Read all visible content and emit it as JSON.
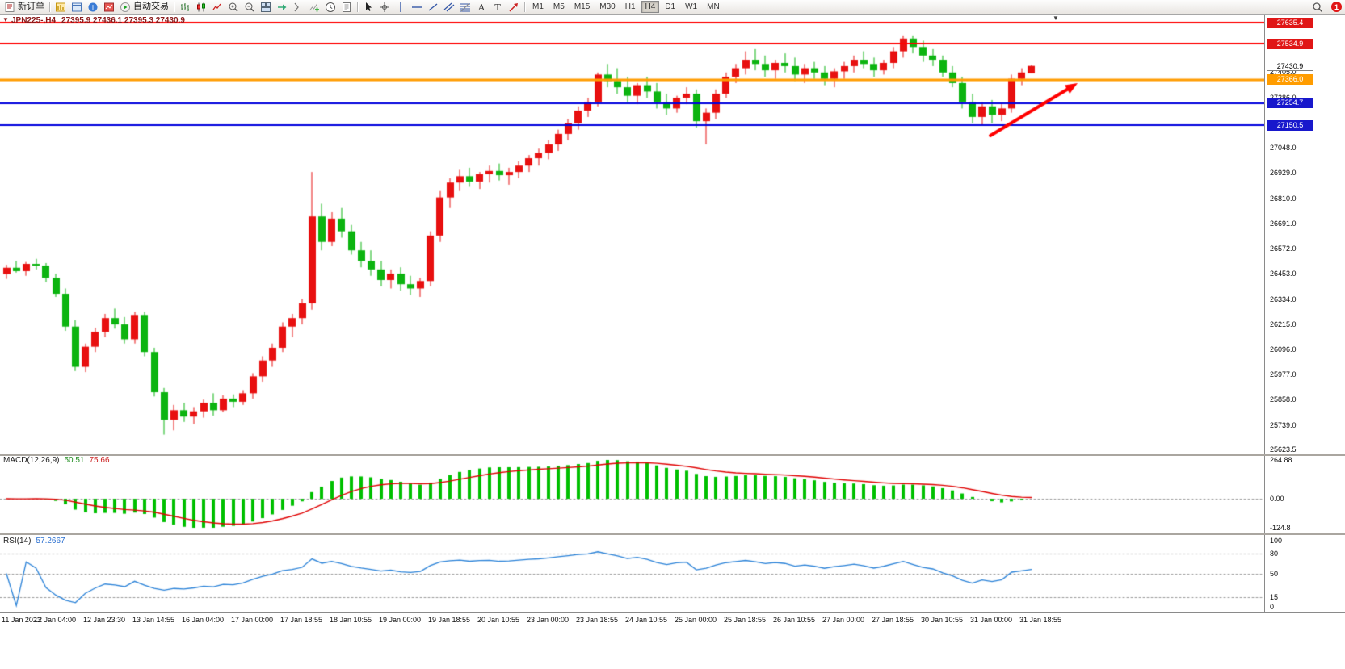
{
  "toolbar": {
    "groups": [
      {
        "items": [
          {
            "name": "new-order-button",
            "icon": "new-order-icon",
            "label": "新订单"
          }
        ]
      },
      {
        "items": [
          {
            "name": "charts-button",
            "icon": "charts-bar-icon"
          },
          {
            "name": "data-window-button",
            "icon": "window-icon"
          },
          {
            "name": "help-button",
            "icon": "info-icon"
          },
          {
            "name": "market-watch-button",
            "icon": "market-watch-icon"
          },
          {
            "name": "auto-trading-button",
            "icon": "autotrade-icon",
            "label": "自动交易"
          }
        ]
      },
      {
        "items": [
          {
            "name": "bar-chart-button",
            "icon": "bar-chart-icon"
          },
          {
            "name": "candlestick-button",
            "icon": "candlestick-icon"
          },
          {
            "name": "line-chart-button",
            "icon": "line-chart-icon"
          },
          {
            "name": "zoom-in-button",
            "icon": "zoom-in-icon"
          },
          {
            "name": "zoom-out-button",
            "icon": "zoom-out-icon"
          },
          {
            "name": "tile-windows-button",
            "icon": "tile-windows-icon"
          },
          {
            "name": "auto-scroll-button",
            "icon": "auto-scroll-icon"
          },
          {
            "name": "chart-shift-button",
            "icon": "chart-shift-icon"
          },
          {
            "name": "indicators-button",
            "icon": "indicators-icon"
          },
          {
            "name": "periods-button",
            "icon": "period-icon"
          },
          {
            "name": "templates-button",
            "icon": "template-icon"
          }
        ]
      },
      {
        "items": [
          {
            "name": "cursor-button",
            "icon": "cursor-icon"
          },
          {
            "name": "crosshair-button",
            "icon": "crosshair-icon"
          },
          {
            "name": "vertical-line-button",
            "icon": "vertical-line-icon"
          },
          {
            "name": "horizontal-line-button",
            "icon": "horizontal-line-icon"
          },
          {
            "name": "trendline-button",
            "icon": "trendline-icon"
          },
          {
            "name": "channel-button",
            "icon": "channel-icon"
          },
          {
            "name": "fibonacci-button",
            "icon": "fibonacci-icon"
          },
          {
            "name": "text-button",
            "icon": "text-icon"
          },
          {
            "name": "text-label-button",
            "icon": "text-label-icon"
          },
          {
            "name": "arrows-button",
            "icon": "arrows-icon"
          }
        ]
      }
    ],
    "timeframes": [
      "M1",
      "M5",
      "M15",
      "M30",
      "H1",
      "H4",
      "D1",
      "W1",
      "MN"
    ],
    "active_timeframe": "H4",
    "notification_count": "1"
  },
  "chart": {
    "header": {
      "symbol": "JPN225-,H4",
      "ohlc": "27395.9 27436.1 27395.3 27430.9"
    }
  },
  "indicators": {
    "macd": {
      "title": "MACD(12,26,9)",
      "value_main": "50.51",
      "value_signal": "75.66",
      "scale": [
        "264.88",
        "0.00",
        "-124.8"
      ]
    },
    "rsi": {
      "title": "RSI(14)",
      "value": "57.2667",
      "scale": [
        "100",
        "80",
        "50",
        "15",
        "0"
      ],
      "levels": [
        80,
        50,
        15
      ]
    }
  },
  "price_scale": {
    "ticks": [
      "27405.0",
      "27286.0",
      "27048.0",
      "26929.0",
      "26810.0",
      "26691.0",
      "26572.0",
      "26453.0",
      "26334.0",
      "26215.0",
      "26096.0",
      "25977.0",
      "25858.0",
      "25739.0",
      "25623.5"
    ],
    "badges": [
      {
        "text": "27635.4",
        "price": 27635.4,
        "bg": "#e01616",
        "fg": "#ffffff"
      },
      {
        "text": "27534.9",
        "price": 27534.9,
        "bg": "#e01616",
        "fg": "#ffffff"
      },
      {
        "text": "27430.9",
        "price": 27430.9,
        "bg": "#ffffff",
        "fg": "#000000",
        "border": "#808080"
      },
      {
        "text": "27366.0",
        "price": 27366.0,
        "bg": "#ff9c00",
        "fg": "#ffffff"
      },
      {
        "text": "27254.7",
        "price": 27254.7,
        "bg": "#1818cc",
        "fg": "#ffffff"
      },
      {
        "text": "27150.5",
        "price": 27150.5,
        "bg": "#1818cc",
        "fg": "#ffffff"
      }
    ]
  },
  "time_axis": {
    "labels": [
      "11 Jan 2023",
      "12 Jan 04:00",
      "12 Jan 23:30",
      "13 Jan 14:55",
      "16 Jan 04:00",
      "17 Jan 00:00",
      "17 Jan 18:55",
      "18 Jan 10:55",
      "19 Jan 00:00",
      "19 Jan 18:55",
      "20 Jan 10:55",
      "23 Jan 00:00",
      "23 Jan 18:55",
      "24 Jan 10:55",
      "25 Jan 00:00",
      "25 Jan 18:55",
      "26 Jan 10:55",
      "27 Jan 00:00",
      "27 Jan 18:55",
      "30 Jan 10:55",
      "31 Jan 00:00",
      "31 Jan 18:55"
    ]
  },
  "chart_data": {
    "type": "candlestick",
    "title": "JPN225- H4",
    "y_range": [
      25623.5,
      27635.4
    ],
    "bull_color": "#e81010",
    "bear_color": "#0cb410",
    "current_price": 27430.9,
    "levels": [
      {
        "price": 27635.4,
        "color": "#ff0000",
        "width": 2
      },
      {
        "price": 27534.9,
        "color": "#ff0000",
        "width": 2
      },
      {
        "price": 27366.0,
        "color": "#ff9c00",
        "width": 3
      },
      {
        "price": 27254.7,
        "color": "#0000dd",
        "width": 2
      },
      {
        "price": 27150.5,
        "color": "#0000dd",
        "width": 2
      }
    ],
    "annotation_arrow": {
      "from": [
        1226,
        150
      ],
      "to": [
        1334,
        85
      ],
      "color": "#ff0000"
    },
    "macd": {
      "fast": 12,
      "slow": 26,
      "signal": 9,
      "histogram_color": "#00c000",
      "signal_color": "#e00000"
    },
    "rsi": {
      "period": 14,
      "line_color": "#2a82d8"
    },
    "candles_ohlc": [
      [
        26448,
        26492,
        26425,
        26478
      ],
      [
        26478,
        26510,
        26455,
        26462
      ],
      [
        26462,
        26505,
        26440,
        26496
      ],
      [
        26496,
        26520,
        26470,
        26488
      ],
      [
        26488,
        26500,
        26410,
        26430
      ],
      [
        26430,
        26450,
        26340,
        26355
      ],
      [
        26355,
        26380,
        26180,
        26200
      ],
      [
        26200,
        26230,
        25990,
        26010
      ],
      [
        26010,
        26120,
        25985,
        26105
      ],
      [
        26105,
        26195,
        26080,
        26175
      ],
      [
        26175,
        26260,
        26150,
        26240
      ],
      [
        26240,
        26285,
        26190,
        26210
      ],
      [
        26210,
        26245,
        26120,
        26140
      ],
      [
        26140,
        26270,
        26120,
        26255
      ],
      [
        26255,
        26270,
        26060,
        26080
      ],
      [
        26080,
        26100,
        25870,
        25890
      ],
      [
        25890,
        25910,
        25690,
        25760
      ],
      [
        25760,
        25830,
        25710,
        25805
      ],
      [
        25805,
        25840,
        25750,
        25775
      ],
      [
        25775,
        25820,
        25740,
        25800
      ],
      [
        25800,
        25855,
        25770,
        25840
      ],
      [
        25840,
        25885,
        25780,
        25805
      ],
      [
        25805,
        25875,
        25795,
        25860
      ],
      [
        25860,
        25880,
        25820,
        25845
      ],
      [
        25845,
        25900,
        25830,
        25885
      ],
      [
        25885,
        25980,
        25860,
        25965
      ],
      [
        25965,
        26060,
        25940,
        26040
      ],
      [
        26040,
        26120,
        26010,
        26100
      ],
      [
        26100,
        26220,
        26080,
        26200
      ],
      [
        26200,
        26260,
        26150,
        26240
      ],
      [
        26240,
        26330,
        26210,
        26310
      ],
      [
        26310,
        26930,
        26280,
        26720
      ],
      [
        26720,
        26780,
        26560,
        26600
      ],
      [
        26600,
        26740,
        26580,
        26710
      ],
      [
        26710,
        26760,
        26620,
        26650
      ],
      [
        26650,
        26680,
        26540,
        26560
      ],
      [
        26560,
        26600,
        26480,
        26510
      ],
      [
        26510,
        26560,
        26440,
        26470
      ],
      [
        26470,
        26510,
        26390,
        26420
      ],
      [
        26420,
        26470,
        26380,
        26450
      ],
      [
        26450,
        26480,
        26370,
        26400
      ],
      [
        26400,
        26440,
        26350,
        26380
      ],
      [
        26380,
        26430,
        26340,
        26415
      ],
      [
        26415,
        26650,
        26390,
        26630
      ],
      [
        26630,
        26840,
        26600,
        26810
      ],
      [
        26810,
        26900,
        26760,
        26880
      ],
      [
        26880,
        26940,
        26840,
        26910
      ],
      [
        26910,
        26950,
        26860,
        26885
      ],
      [
        26885,
        26930,
        26850,
        26920
      ],
      [
        26920,
        26960,
        26880,
        26935
      ],
      [
        26935,
        26970,
        26890,
        26915
      ],
      [
        26915,
        26950,
        26870,
        26930
      ],
      [
        26930,
        26980,
        26900,
        26960
      ],
      [
        26960,
        27010,
        26930,
        26995
      ],
      [
        26995,
        27040,
        26960,
        27020
      ],
      [
        27020,
        27080,
        26990,
        27060
      ],
      [
        27060,
        27130,
        27030,
        27110
      ],
      [
        27110,
        27180,
        27080,
        27160
      ],
      [
        27160,
        27240,
        27130,
        27220
      ],
      [
        27220,
        27280,
        27190,
        27260
      ],
      [
        27260,
        27400,
        27240,
        27390
      ],
      [
        27390,
        27440,
        27330,
        27360
      ],
      [
        27360,
        27420,
        27300,
        27330
      ],
      [
        27330,
        27380,
        27260,
        27290
      ],
      [
        27290,
        27350,
        27250,
        27340
      ],
      [
        27340,
        27380,
        27280,
        27310
      ],
      [
        27310,
        27350,
        27230,
        27260
      ],
      [
        27260,
        27300,
        27200,
        27230
      ],
      [
        27230,
        27290,
        27210,
        27280
      ],
      [
        27280,
        27330,
        27250,
        27300
      ],
      [
        27300,
        27320,
        27140,
        27170
      ],
      [
        27170,
        27230,
        27060,
        27210
      ],
      [
        27210,
        27320,
        27180,
        27300
      ],
      [
        27300,
        27400,
        27280,
        27380
      ],
      [
        27380,
        27440,
        27350,
        27420
      ],
      [
        27420,
        27500,
        27390,
        27460
      ],
      [
        27460,
        27510,
        27410,
        27440
      ],
      [
        27440,
        27480,
        27380,
        27410
      ],
      [
        27410,
        27460,
        27370,
        27445
      ],
      [
        27445,
        27490,
        27400,
        27430
      ],
      [
        27430,
        27470,
        27360,
        27390
      ],
      [
        27390,
        27440,
        27350,
        27420
      ],
      [
        27420,
        27450,
        27370,
        27400
      ],
      [
        27400,
        27430,
        27340,
        27370
      ],
      [
        27370,
        27420,
        27330,
        27405
      ],
      [
        27405,
        27450,
        27370,
        27430
      ],
      [
        27430,
        27480,
        27400,
        27460
      ],
      [
        27460,
        27500,
        27420,
        27440
      ],
      [
        27440,
        27470,
        27380,
        27410
      ],
      [
        27410,
        27460,
        27390,
        27445
      ],
      [
        27445,
        27520,
        27420,
        27500
      ],
      [
        27500,
        27575,
        27470,
        27560
      ],
      [
        27560,
        27575,
        27490,
        27520
      ],
      [
        27520,
        27550,
        27450,
        27480
      ],
      [
        27480,
        27510,
        27430,
        27460
      ],
      [
        27460,
        27480,
        27380,
        27400
      ],
      [
        27400,
        27430,
        27330,
        27350
      ],
      [
        27350,
        27380,
        27230,
        27260
      ],
      [
        27260,
        27300,
        27160,
        27190
      ],
      [
        27190,
        27260,
        27150,
        27240
      ],
      [
        27240,
        27270,
        27160,
        27200
      ],
      [
        27200,
        27250,
        27170,
        27230
      ],
      [
        27230,
        27390,
        27210,
        27370
      ],
      [
        27370,
        27420,
        27340,
        27400
      ],
      [
        27395.9,
        27436.1,
        27395.3,
        27430.9
      ]
    ]
  }
}
